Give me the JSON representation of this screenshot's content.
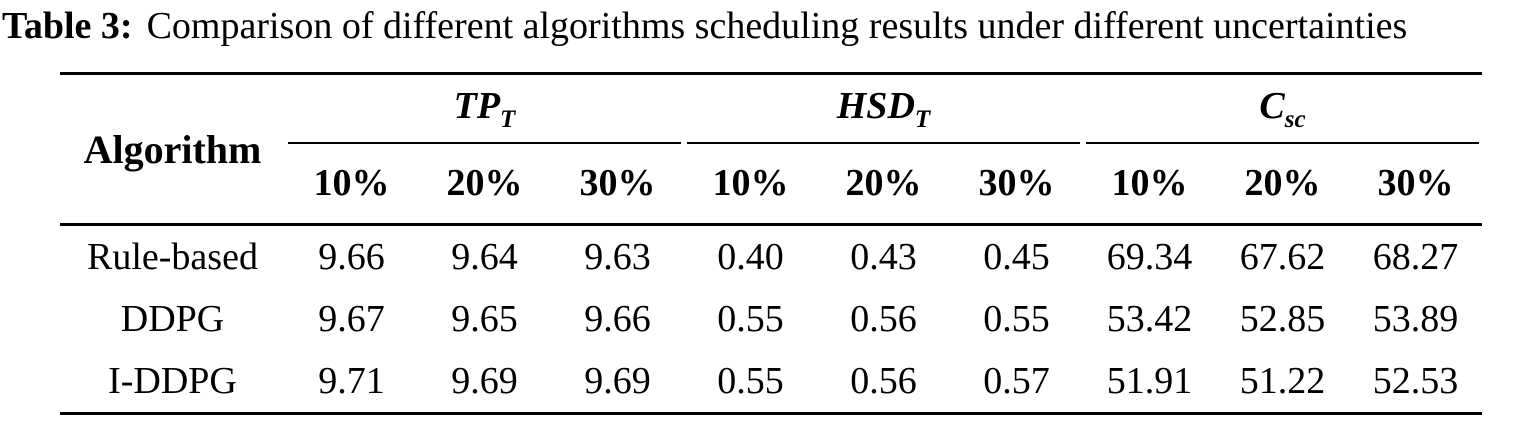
{
  "caption": {
    "label": "Table 3:",
    "text": "Comparison of different algorithms scheduling results under different uncertainties"
  },
  "table": {
    "row_header": "Algorithm",
    "groups": [
      {
        "name": "TP",
        "sub": "T"
      },
      {
        "name": "HSD",
        "sub": "T"
      },
      {
        "name": "C",
        "sub": "sc"
      }
    ],
    "subheaders": [
      "10%",
      "20%",
      "30%",
      "10%",
      "20%",
      "30%",
      "10%",
      "20%",
      "30%"
    ],
    "rows": [
      {
        "label": "Rule-based",
        "values": [
          "9.66",
          "9.64",
          "9.63",
          "0.40",
          "0.43",
          "0.45",
          "69.34",
          "67.62",
          "68.27"
        ]
      },
      {
        "label": "DDPG",
        "values": [
          "9.67",
          "9.65",
          "9.66",
          "0.55",
          "0.56",
          "0.55",
          "53.42",
          "52.85",
          "53.89"
        ]
      },
      {
        "label": "I-DDPG",
        "values": [
          "9.71",
          "9.69",
          "9.69",
          "0.55",
          "0.56",
          "0.57",
          "51.91",
          "51.22",
          "52.53"
        ]
      }
    ]
  },
  "colors": {
    "text": "#000000",
    "background": "#ffffff",
    "rule": "#000000"
  }
}
